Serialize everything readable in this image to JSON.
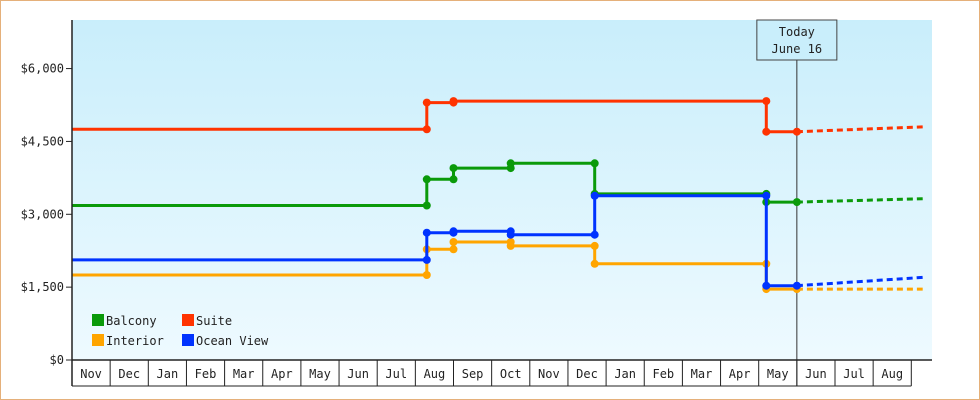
{
  "chart_data": {
    "type": "line",
    "x_months": [
      "Nov",
      "Dec",
      "Jan",
      "Feb",
      "Mar",
      "Apr",
      "May",
      "Jun",
      "Jul",
      "Aug",
      "Sep",
      "Oct",
      "Nov",
      "Dec",
      "Jan",
      "Feb",
      "Mar",
      "Apr",
      "May",
      "Jun",
      "Jul",
      "Aug"
    ],
    "y_ticks": [
      "$0",
      "$1,500",
      "$3,000",
      "$4,500",
      "$6,000"
    ],
    "ylim": [
      0,
      7000
    ],
    "grid": false,
    "legend_position": "bottom-left",
    "today_annotation": {
      "line1": "Today",
      "line2": "June 16",
      "x": 19.0
    },
    "series": [
      {
        "name": "Balcony",
        "color": "#0a9a0a",
        "points": [
          [
            0,
            3180
          ],
          [
            9.3,
            3180
          ],
          [
            9.3,
            3720
          ],
          [
            10.0,
            3720
          ],
          [
            10.0,
            3950
          ],
          [
            11.5,
            3950
          ],
          [
            11.5,
            4050
          ],
          [
            13.7,
            4050
          ],
          [
            13.7,
            3420
          ],
          [
            18.2,
            3420
          ],
          [
            18.2,
            3250
          ],
          [
            19.0,
            3250
          ]
        ],
        "forecast": [
          [
            19.0,
            3250
          ],
          [
            22.3,
            3320
          ]
        ]
      },
      {
        "name": "Suite",
        "color": "#ff3300",
        "points": [
          [
            0,
            4750
          ],
          [
            9.3,
            4750
          ],
          [
            9.3,
            5300
          ],
          [
            10.0,
            5300
          ],
          [
            10.0,
            5330
          ],
          [
            18.2,
            5330
          ],
          [
            18.2,
            4700
          ],
          [
            19.0,
            4700
          ]
        ],
        "forecast": [
          [
            19.0,
            4700
          ],
          [
            22.3,
            4800
          ]
        ]
      },
      {
        "name": "Interior",
        "color": "#ffa500",
        "points": [
          [
            0,
            1750
          ],
          [
            9.3,
            1750
          ],
          [
            9.3,
            2280
          ],
          [
            10.0,
            2280
          ],
          [
            10.0,
            2430
          ],
          [
            11.5,
            2430
          ],
          [
            11.5,
            2350
          ],
          [
            13.7,
            2350
          ],
          [
            13.7,
            1980
          ],
          [
            18.2,
            1980
          ],
          [
            18.2,
            1460
          ],
          [
            19.0,
            1460
          ]
        ],
        "forecast": [
          [
            19.0,
            1460
          ],
          [
            22.3,
            1460
          ]
        ]
      },
      {
        "name": "Ocean View",
        "color": "#0033ff",
        "points": [
          [
            0,
            2060
          ],
          [
            9.3,
            2060
          ],
          [
            9.3,
            2620
          ],
          [
            10.0,
            2620
          ],
          [
            10.0,
            2650
          ],
          [
            11.5,
            2650
          ],
          [
            11.5,
            2580
          ],
          [
            13.7,
            2580
          ],
          [
            13.7,
            3380
          ],
          [
            18.2,
            3380
          ],
          [
            18.2,
            1530
          ],
          [
            19.0,
            1530
          ]
        ],
        "forecast": [
          [
            19.0,
            1530
          ],
          [
            22.3,
            1700
          ]
        ]
      }
    ]
  }
}
